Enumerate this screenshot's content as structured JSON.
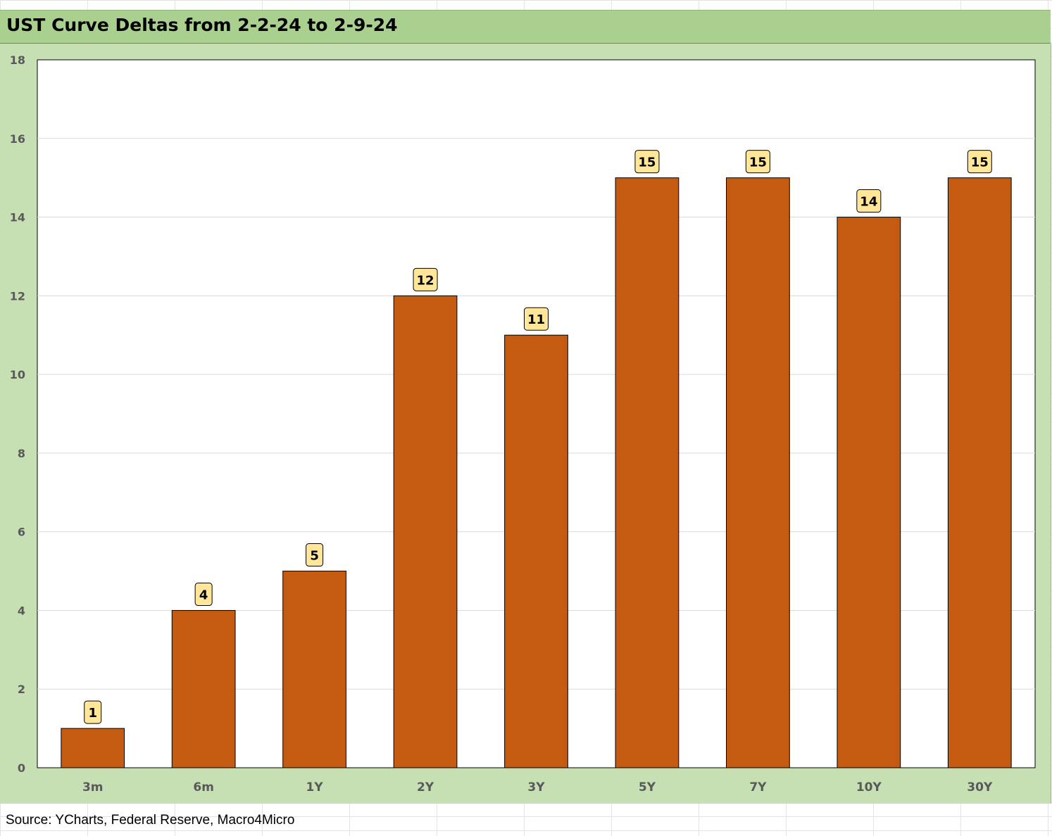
{
  "chart_data": {
    "type": "bar",
    "title": "UST Curve Deltas from 2-2-24 to 2-9-24",
    "categories": [
      "3m",
      "6m",
      "1Y",
      "2Y",
      "3Y",
      "5Y",
      "7Y",
      "10Y",
      "30Y"
    ],
    "values": [
      1,
      4,
      5,
      12,
      11,
      15,
      15,
      14,
      15
    ],
    "data_labels": [
      "1",
      "4",
      "5",
      "12",
      "11",
      "15",
      "15",
      "14",
      "15"
    ],
    "ylim": [
      0,
      18
    ],
    "yticks": [
      0,
      2,
      4,
      6,
      8,
      10,
      12,
      14,
      16,
      18
    ],
    "xlabel": "",
    "ylabel": "",
    "grid": true,
    "legend": "none",
    "bar_color": "#c55a11",
    "label_box_color": "#ffe699"
  },
  "source": "Source: YCharts, Federal Reserve, Macro4Micro"
}
